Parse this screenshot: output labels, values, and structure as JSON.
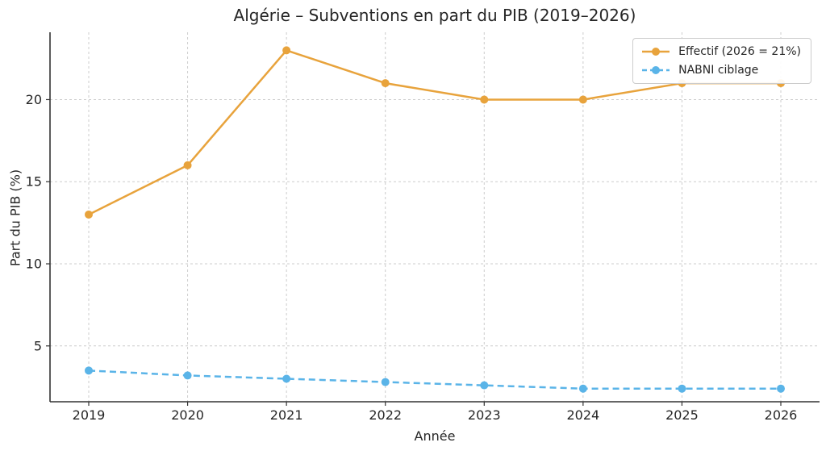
{
  "chart_data": {
    "type": "line",
    "title": "Algérie – Subventions en part du PIB (2019–2026)",
    "xlabel": "Année",
    "ylabel": "Part du PIB (%)",
    "categories": [
      "2019",
      "2020",
      "2021",
      "2022",
      "2023",
      "2024",
      "2025",
      "2026"
    ],
    "y_ticks": [
      5,
      10,
      15,
      20
    ],
    "ylim": [
      1.6,
      24.1
    ],
    "grid": true,
    "grid_style": "dashed",
    "legend_position": "upper right",
    "colors": {
      "grid": "#cccccc",
      "spine": "#333333",
      "text": "#262626",
      "background": "#ffffff"
    },
    "series": [
      {
        "name": "Effectif (2026 = 21%)",
        "color": "#e8a33c",
        "line_style": "solid",
        "marker": "circle",
        "values": [
          13,
          16,
          23,
          21,
          20,
          20,
          21,
          21
        ]
      },
      {
        "name": "NABNI ciblage",
        "color": "#5ab4e8",
        "line_style": "dashed",
        "marker": "circle",
        "values": [
          3.5,
          3.2,
          3.0,
          2.8,
          2.6,
          2.4,
          2.4,
          2.4
        ]
      }
    ]
  }
}
